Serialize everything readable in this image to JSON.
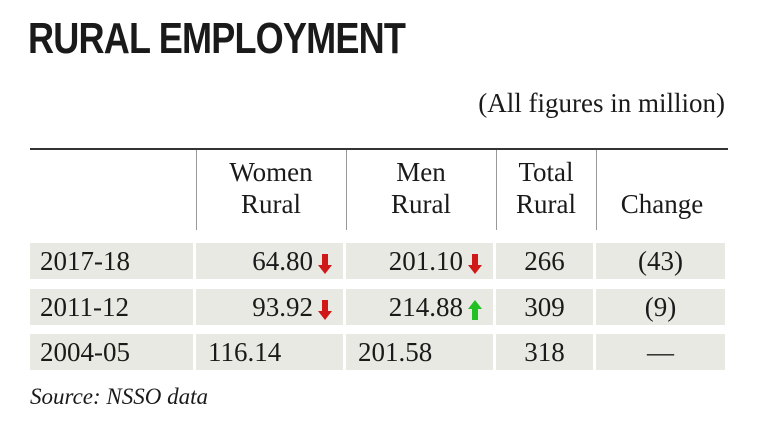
{
  "header": {
    "title": "RURAL EMPLOYMENT",
    "note": "(All figures in million)"
  },
  "table": {
    "columns": [
      [
        "Women",
        "Rural"
      ],
      [
        "Men",
        "Rural"
      ],
      [
        "Total",
        "Rural"
      ],
      [
        "Change"
      ]
    ],
    "rows": [
      [
        "2017-18",
        "64.80",
        "201.10",
        "266",
        "(43)"
      ],
      [
        "2011-12",
        "93.92",
        "214.88",
        "309",
        "(9)"
      ],
      [
        "2004-05",
        "116.14",
        "201.58",
        "318",
        "—"
      ]
    ]
  },
  "footer": {
    "source": "Source: NSSO data"
  }
}
